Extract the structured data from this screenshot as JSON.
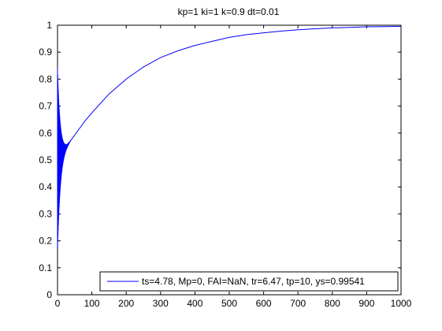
{
  "chart_data": {
    "type": "line",
    "title": "kp=1  ki=1  k=0.9  dt=0.01",
    "xlabel": "",
    "ylabel": "",
    "xlim": [
      0,
      1000
    ],
    "ylim": [
      0,
      1
    ],
    "xticks": [
      0,
      100,
      200,
      300,
      400,
      500,
      600,
      700,
      800,
      900,
      1000
    ],
    "yticks": [
      0,
      0.1,
      0.2,
      0.3,
      0.4,
      0.5,
      0.6,
      0.7,
      0.8,
      0.9,
      1
    ],
    "xtick_labels": [
      "0",
      "100",
      "200",
      "300",
      "400",
      "500",
      "600",
      "700",
      "800",
      "900",
      "1000"
    ],
    "ytick_labels": [
      "0",
      "0.1",
      "0.2",
      "0.3",
      "0.4",
      "0.5",
      "0.6",
      "0.7",
      "0.8",
      "0.9",
      "1"
    ],
    "grid": false,
    "legend_position": "bottom-right",
    "series": [
      {
        "name": "ts=4.78,  Mp=0, FAI=NaN, tr=6.47, tp=10, ys=0.99541",
        "color": "#0000ff",
        "oscillation": {
          "x_start": 0,
          "x_end": 40,
          "upper_start": 0.84,
          "lower_start": 0.16,
          "center_start": 0.5,
          "center_end": 0.575
        },
        "x": [
          40,
          60,
          80,
          100,
          150,
          200,
          250,
          300,
          350,
          400,
          450,
          500,
          550,
          600,
          650,
          700,
          750,
          800,
          850,
          900,
          950,
          1000
        ],
        "y": [
          0.575,
          0.61,
          0.645,
          0.675,
          0.745,
          0.8,
          0.845,
          0.88,
          0.905,
          0.925,
          0.94,
          0.955,
          0.965,
          0.972,
          0.978,
          0.983,
          0.987,
          0.99,
          0.992,
          0.994,
          0.995,
          0.996
        ]
      }
    ]
  }
}
